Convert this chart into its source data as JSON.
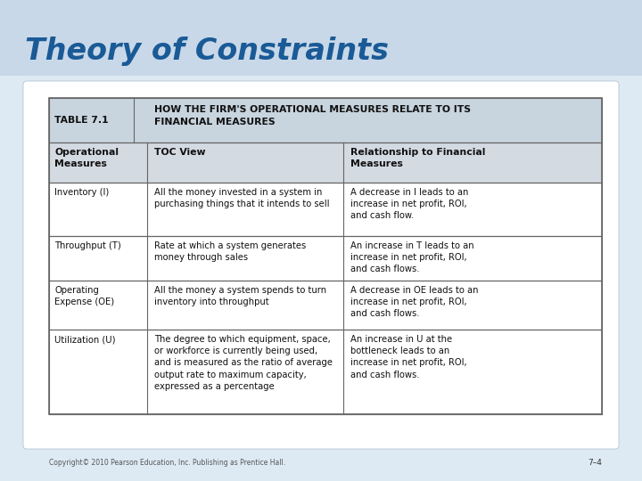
{
  "title": "Theory of Constraints",
  "title_color": "#1A5A96",
  "title_fontsize": 24,
  "bg_color_top": "#C8D8E8",
  "bg_color_bottom": "#FFFFFF",
  "card_bg": "#FFFFFF",
  "header_title_bg": "#C8D4DE",
  "subheader_bg": "#D4DAE2",
  "white_row_bg": "#FFFFFF",
  "copyright": "Copyright© 2010 Pearson Education, Inc. Publishing as Prentice Hall.",
  "page_num": "7–4",
  "table_title_label": "TABLE 7.1",
  "table_title_text": "HOW THE FIRM'S OPERATIONAL MEASURES RELATE TO ITS\nFINANCIAL MEASURES",
  "col_headers": [
    "Operational\nMeasures",
    "TOC View",
    "Relationship to Financial\nMeasures"
  ],
  "rows": [
    {
      "col1": "Inventory (I)",
      "col2": "All the money invested in a system in\npurchasing things that it intends to sell",
      "col3": "A decrease in I leads to an\nincrease in net profit, ROI,\nand cash flow."
    },
    {
      "col1": "Throughput (T)",
      "col2": "Rate at which a system generates\nmoney through sales",
      "col3": "An increase in T leads to an\nincrease in net profit, ROI,\nand cash flows."
    },
    {
      "col1": "Operating\nExpense (OE)",
      "col2": "All the money a system spends to turn\ninventory into throughput",
      "col3": "A decrease in OE leads to an\nincrease in net profit, ROI,\nand cash flows."
    },
    {
      "col1": "Utilization (U)",
      "col2": "The degree to which equipment, space,\nor workforce is currently being used,\nand is measured as the ratio of average\noutput rate to maximum capacity,\nexpressed as a percentage",
      "col3": "An increase in U at the\nbottleneck leads to an\nincrease in net profit, ROI,\nand cash flows."
    }
  ],
  "border_color": "#666666",
  "text_color": "#111111",
  "font_size": 7.2,
  "header_font_size": 7.8
}
